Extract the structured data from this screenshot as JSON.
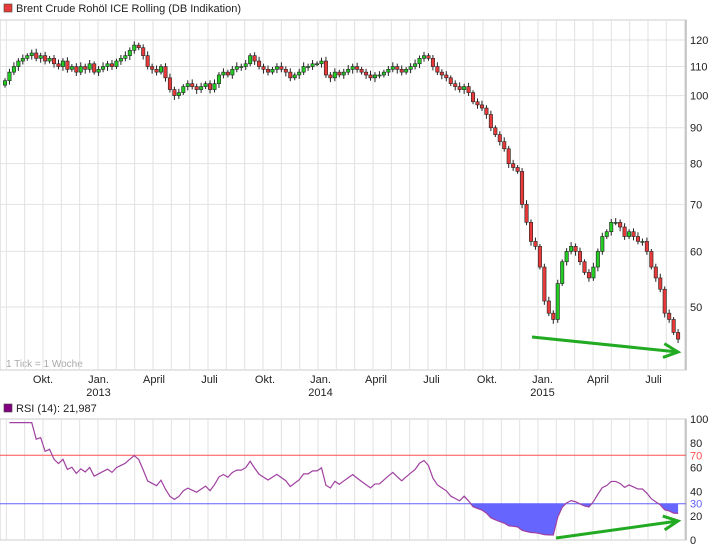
{
  "chart_data": [
    {
      "type": "candlestick",
      "title": "Brent Crude Rohöl ICE Rolling (DB Indikation)",
      "title_marker_color": "#e83a3a",
      "note": "1 Tick = 1 Woche",
      "y_scale": "log",
      "ylim": [
        42,
        125
      ],
      "y_ticks": [
        50,
        60,
        70,
        80,
        90,
        100,
        110,
        120
      ],
      "x_ticks": [
        {
          "label": "Okt.",
          "year": ""
        },
        {
          "label": "Jan.",
          "year": "2013"
        },
        {
          "label": "April",
          "year": ""
        },
        {
          "label": "Juli",
          "year": ""
        },
        {
          "label": "Okt.",
          "year": ""
        },
        {
          "label": "Jan.",
          "year": "2014"
        },
        {
          "label": "April",
          "year": ""
        },
        {
          "label": "Juli",
          "year": ""
        },
        {
          "label": "Okt.",
          "year": ""
        },
        {
          "label": "Jan.",
          "year": "2015"
        },
        {
          "label": "April",
          "year": ""
        },
        {
          "label": "Juli",
          "year": ""
        }
      ],
      "grid": true,
      "up_color": "#22cc22",
      "down_color": "#e83a3a",
      "weekly_closes": [
        105,
        108,
        110,
        112,
        113,
        114,
        115,
        113,
        114,
        112,
        113,
        111,
        110,
        112,
        109,
        110,
        108,
        110,
        109,
        111,
        108,
        109,
        110,
        111,
        110,
        112,
        113,
        114,
        116,
        118,
        117,
        114,
        110,
        109,
        108,
        110,
        106,
        102,
        100,
        101,
        103,
        104,
        103,
        102,
        103,
        104,
        102,
        104,
        107,
        108,
        107,
        109,
        110,
        110,
        111,
        114,
        112,
        110,
        109,
        108,
        109,
        110,
        109,
        108,
        106,
        107,
        108,
        110,
        110,
        111,
        111,
        112,
        107,
        106,
        108,
        107,
        108,
        109,
        110,
        109,
        108,
        107,
        106,
        107,
        107,
        108,
        109,
        110,
        109,
        108,
        109,
        110,
        111,
        113,
        114,
        113,
        110,
        108,
        107,
        106,
        104,
        103,
        102,
        103,
        101,
        98,
        97,
        96,
        94,
        90,
        88,
        86,
        84,
        80,
        79,
        78,
        70,
        66,
        62,
        61,
        57,
        51,
        49,
        48,
        54,
        58,
        60,
        61,
        60,
        58,
        56,
        55,
        57,
        60,
        63,
        64,
        66,
        66,
        65,
        63,
        64,
        63,
        62,
        62,
        60,
        57,
        55,
        53,
        49,
        48,
        46,
        45
      ],
      "annotation": "green trend arrow, falling lows"
    },
    {
      "type": "line",
      "title": "RSI (14): 21,987",
      "title_marker_color": "#800080",
      "ylim": [
        0,
        100
      ],
      "y_ticks": [
        0,
        20,
        40,
        60,
        80,
        100
      ],
      "levels": [
        {
          "value": 70,
          "color": "#ff5050"
        },
        {
          "value": 30,
          "color": "#6060ff"
        }
      ],
      "line_color": "#a040a0",
      "oversold_fill_color": "#6666ff",
      "period": 14,
      "last_value": 21.987,
      "annotation": "green trend arrow, rising RSI"
    }
  ]
}
